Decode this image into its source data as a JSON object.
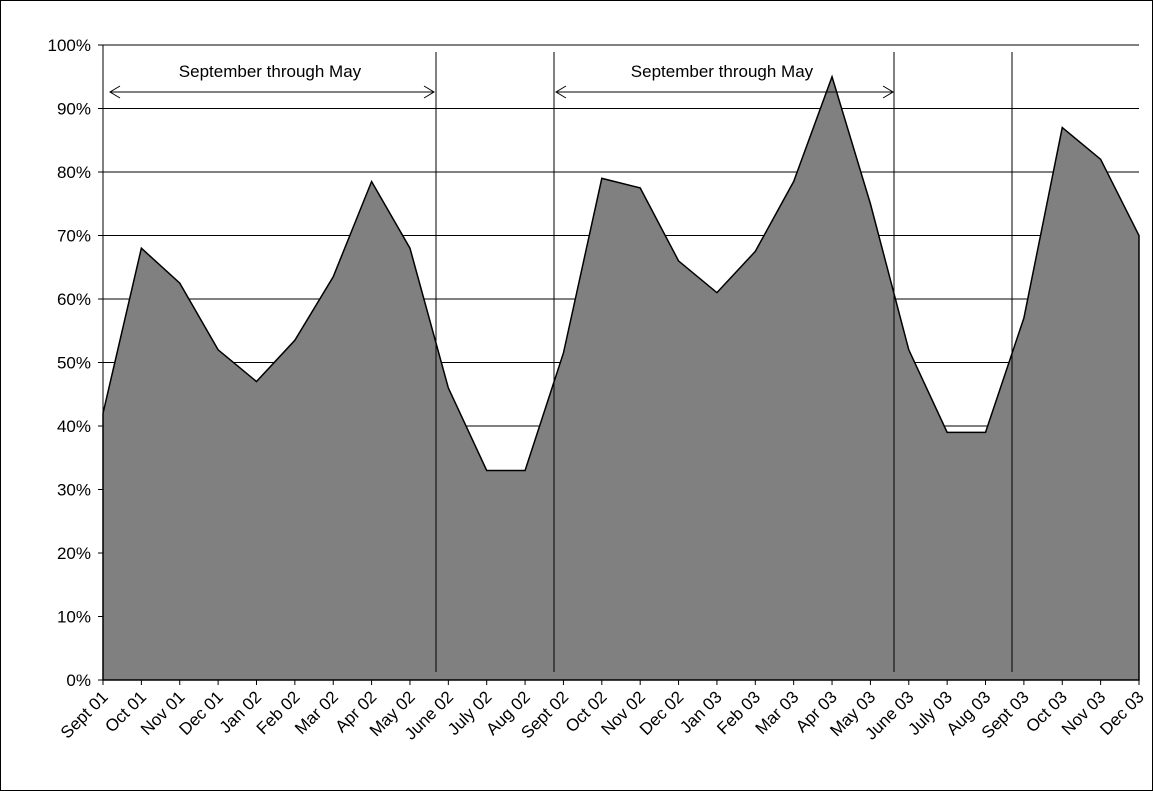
{
  "chart_data": {
    "type": "area",
    "categories": [
      "Sept 01",
      "Oct 01",
      "Nov 01",
      "Dec 01",
      "Jan 02",
      "Feb 02",
      "Mar 02",
      "Apr 02",
      "May 02",
      "June 02",
      "July 02",
      "Aug 02",
      "Sept 02",
      "Oct 02",
      "Nov 02",
      "Dec 02",
      "Jan 03",
      "Feb 03",
      "Mar 03",
      "Apr 03",
      "May 03",
      "June 03",
      "July 03",
      "Aug 03",
      "Sept 03",
      "Oct 03",
      "Nov 03",
      "Dec 03"
    ],
    "values": [
      42,
      68,
      62.5,
      52,
      47,
      53.5,
      63.5,
      78.5,
      68,
      46,
      33,
      33,
      51.5,
      79,
      77.5,
      66,
      61,
      67.5,
      78.5,
      95,
      75,
      52,
      39,
      39,
      57,
      87,
      82,
      70
    ],
    "color": "#808080",
    "ylim": [
      0,
      100
    ],
    "yticks": [
      {
        "value": 0,
        "label": "0%"
      },
      {
        "value": 10,
        "label": "10%"
      },
      {
        "value": 20,
        "label": "20%"
      },
      {
        "value": 30,
        "label": "30%"
      },
      {
        "value": 40,
        "label": "40%"
      },
      {
        "value": 50,
        "label": "50%"
      },
      {
        "value": 60,
        "label": "60%"
      },
      {
        "value": 70,
        "label": "70%"
      },
      {
        "value": 80,
        "label": "80%"
      },
      {
        "value": 90,
        "label": "90%"
      },
      {
        "value": 100,
        "label": "100%"
      }
    ],
    "grid": true,
    "annotations": [
      "September through May",
      "September through May"
    ]
  }
}
